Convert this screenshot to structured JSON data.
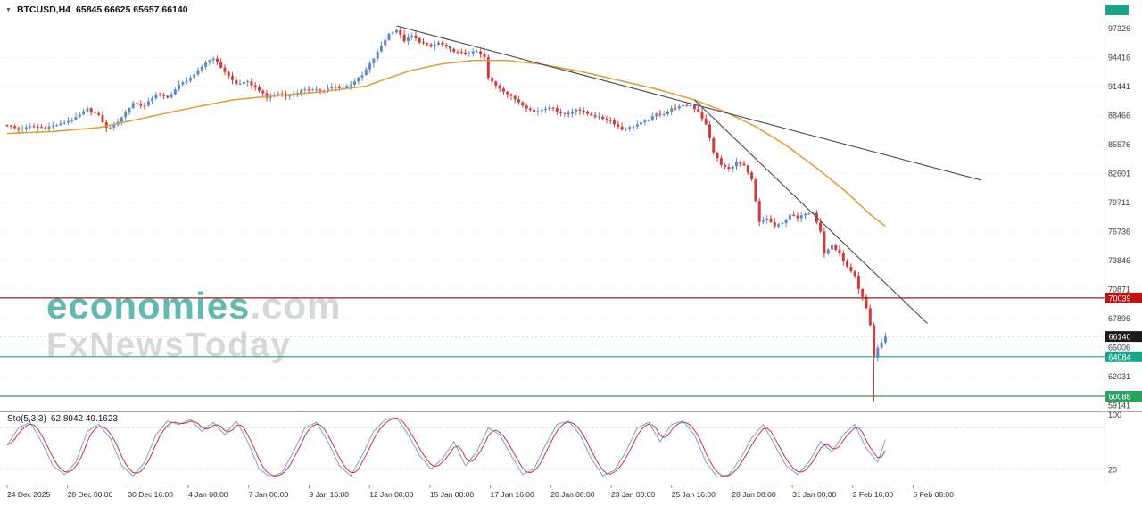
{
  "header": {
    "dropdown_icon": "▼",
    "symbol": "BTCUSD,H4",
    "ohlc": "65845 66625 65657 66140"
  },
  "watermark": {
    "brand": "economies",
    "brand_suffix": ".com",
    "subbrand": "FxNewsToday",
    "brand_color": "#35a79b",
    "gray_color": "#b4b9b9"
  },
  "chart_data": {
    "type": "candlestick",
    "symbol": "BTCUSD",
    "timeframe": "H4",
    "candle_count": 231,
    "up_color": "#5c8bc8",
    "down_color": "#d13b3b",
    "y_ticks": [
      97326,
      94416,
      91441,
      88466,
      85576,
      82601,
      79711,
      76736,
      73846,
      70871,
      67896,
      65006,
      62031,
      59141
    ],
    "x_labels": [
      "24 Dec 2025",
      "28 Dec 00:00",
      "30 Dec 16:00",
      "4 Jan 08:00",
      "7 Jan 00:00",
      "9 Jan 16:00",
      "12 Jan 08:00",
      "15 Jan 00:00",
      "17 Jan 16:00",
      "20 Jan 08:00",
      "23 Jan 00:00",
      "25 Jan 16:00",
      "28 Jan 08:00",
      "31 Jan 00:00",
      "2 Feb 16:00",
      "5 Feb 08:00"
    ],
    "price_path": [
      [
        0,
        87550
      ],
      [
        3,
        87100
      ],
      [
        6,
        87400
      ],
      [
        10,
        87300
      ],
      [
        14,
        87650
      ],
      [
        18,
        88300
      ],
      [
        21,
        89200
      ],
      [
        24,
        88500
      ],
      [
        26,
        87250
      ],
      [
        28,
        87500
      ],
      [
        31,
        88800
      ],
      [
        33,
        89800
      ],
      [
        36,
        89500
      ],
      [
        39,
        90700
      ],
      [
        42,
        90300
      ],
      [
        45,
        91600
      ],
      [
        49,
        92600
      ],
      [
        52,
        93900
      ],
      [
        54,
        94350
      ],
      [
        56,
        93400
      ],
      [
        58,
        92500
      ],
      [
        60,
        91700
      ],
      [
        63,
        91900
      ],
      [
        66,
        91100
      ],
      [
        68,
        90300
      ],
      [
        71,
        90700
      ],
      [
        74,
        90500
      ],
      [
        77,
        91000
      ],
      [
        80,
        91200
      ],
      [
        83,
        91000
      ],
      [
        85,
        91400
      ],
      [
        88,
        91300
      ],
      [
        90,
        91700
      ],
      [
        93,
        92600
      ],
      [
        96,
        94300
      ],
      [
        98,
        95600
      ],
      [
        100,
        96800
      ],
      [
        102,
        97200
      ],
      [
        104,
        96100
      ],
      [
        106,
        96600
      ],
      [
        108,
        96000
      ],
      [
        111,
        95500
      ],
      [
        113,
        95900
      ],
      [
        116,
        95200
      ],
      [
        118,
        94900
      ],
      [
        120,
        94800
      ],
      [
        123,
        95000
      ],
      [
        125,
        94400
      ],
      [
        126,
        92300
      ],
      [
        128,
        91600
      ],
      [
        131,
        90700
      ],
      [
        134,
        89900
      ],
      [
        136,
        89300
      ],
      [
        138,
        88900
      ],
      [
        140,
        89100
      ],
      [
        142,
        89400
      ],
      [
        145,
        88800
      ],
      [
        147,
        88700
      ],
      [
        149,
        89200
      ],
      [
        152,
        88700
      ],
      [
        154,
        88450
      ],
      [
        156,
        88200
      ],
      [
        158,
        88000
      ],
      [
        161,
        87100
      ],
      [
        163,
        87300
      ],
      [
        165,
        87600
      ],
      [
        168,
        88100
      ],
      [
        170,
        88650
      ],
      [
        172,
        88700
      ],
      [
        174,
        89200
      ],
      [
        177,
        89500
      ],
      [
        179,
        89560
      ],
      [
        181,
        88900
      ],
      [
        183,
        87580
      ],
      [
        185,
        84800
      ],
      [
        187,
        83500
      ],
      [
        189,
        83100
      ],
      [
        191,
        83800
      ],
      [
        193,
        83400
      ],
      [
        195,
        82000
      ],
      [
        197,
        77700
      ],
      [
        199,
        78100
      ],
      [
        201,
        77300
      ],
      [
        203,
        77600
      ],
      [
        205,
        78500
      ],
      [
        207,
        78100
      ],
      [
        209,
        78600
      ],
      [
        211,
        78730
      ],
      [
        213,
        76800
      ],
      [
        214,
        74500
      ],
      [
        216,
        75400
      ],
      [
        218,
        74500
      ],
      [
        220,
        73150
      ],
      [
        222,
        72200
      ],
      [
        223,
        70900
      ],
      [
        224,
        70100
      ],
      [
        225,
        69000
      ],
      [
        226,
        67300
      ],
      [
        227,
        64000
      ],
      [
        228,
        65000
      ],
      [
        229,
        65500
      ],
      [
        230,
        66140
      ]
    ],
    "wick_overrides": [
      {
        "i": 102,
        "high": 97320
      },
      {
        "i": 227,
        "low": 59560
      }
    ],
    "ma_orange": {
      "color": "#dfa040",
      "points": [
        [
          0,
          86700
        ],
        [
          12,
          86900
        ],
        [
          24,
          87300
        ],
        [
          35,
          88200
        ],
        [
          47,
          89200
        ],
        [
          59,
          90100
        ],
        [
          71,
          90550
        ],
        [
          82,
          90900
        ],
        [
          94,
          91500
        ],
        [
          105,
          93000
        ],
        [
          113,
          93700
        ],
        [
          122,
          94100
        ],
        [
          131,
          94100
        ],
        [
          140,
          93700
        ],
        [
          150,
          93000
        ],
        [
          160,
          92100
        ],
        [
          170,
          91200
        ],
        [
          180,
          90100
        ],
        [
          188,
          88900
        ],
        [
          196,
          87400
        ],
        [
          204,
          85500
        ],
        [
          212,
          83200
        ],
        [
          220,
          80700
        ],
        [
          226,
          78500
        ],
        [
          230,
          77300
        ]
      ]
    },
    "trendlines": [
      {
        "from": [
          102,
          97600
        ],
        "to": [
          255,
          81980
        ],
        "color": "#4a4a4a"
      },
      {
        "from": [
          180,
          90100
        ],
        "to": [
          241,
          67450
        ],
        "color": "#4a4a4a"
      }
    ],
    "hlines": [
      {
        "price": 70039,
        "label": "70039",
        "line_color": "#9b1c1c",
        "label_bg": "#c41111"
      },
      {
        "price": 64084,
        "label": "64084",
        "line_color": "#18a689",
        "label_bg": "#18a689"
      },
      {
        "price": 60088,
        "label": "60088",
        "line_color": "#27a35e",
        "label_bg": "#27a35e"
      }
    ],
    "current_price": {
      "value": 66140,
      "label": "66140",
      "label_bg": "#1c1c1c"
    },
    "pinned_label_color": "#18a689",
    "indicator": {
      "name": "Sto(5,3,3)",
      "values": "62.8942 49.1623",
      "main_color": "#7aa0d4",
      "signal_color": "#c03a3a",
      "levels": [
        80,
        20
      ],
      "range": [
        0,
        100
      ],
      "axis_labels": [
        "100",
        "20"
      ],
      "main_points": [
        [
          0,
          55
        ],
        [
          3,
          80
        ],
        [
          6,
          88
        ],
        [
          9,
          60
        ],
        [
          12,
          25
        ],
        [
          15,
          12
        ],
        [
          18,
          30
        ],
        [
          21,
          75
        ],
        [
          24,
          85
        ],
        [
          27,
          65
        ],
        [
          30,
          25
        ],
        [
          33,
          10
        ],
        [
          36,
          30
        ],
        [
          39,
          70
        ],
        [
          42,
          90
        ],
        [
          45,
          85
        ],
        [
          48,
          92
        ],
        [
          51,
          75
        ],
        [
          54,
          88
        ],
        [
          57,
          70
        ],
        [
          60,
          90
        ],
        [
          63,
          60
        ],
        [
          66,
          20
        ],
        [
          69,
          8
        ],
        [
          72,
          15
        ],
        [
          75,
          45
        ],
        [
          78,
          80
        ],
        [
          81,
          88
        ],
        [
          84,
          60
        ],
        [
          87,
          25
        ],
        [
          90,
          10
        ],
        [
          93,
          40
        ],
        [
          96,
          75
        ],
        [
          99,
          92
        ],
        [
          102,
          95
        ],
        [
          105,
          70
        ],
        [
          108,
          40
        ],
        [
          111,
          20
        ],
        [
          114,
          35
        ],
        [
          117,
          60
        ],
        [
          120,
          25
        ],
        [
          123,
          45
        ],
        [
          126,
          80
        ],
        [
          129,
          70
        ],
        [
          132,
          40
        ],
        [
          135,
          12
        ],
        [
          138,
          20
        ],
        [
          141,
          55
        ],
        [
          144,
          85
        ],
        [
          147,
          90
        ],
        [
          150,
          70
        ],
        [
          153,
          35
        ],
        [
          156,
          10
        ],
        [
          159,
          18
        ],
        [
          162,
          45
        ],
        [
          165,
          80
        ],
        [
          168,
          88
        ],
        [
          171,
          60
        ],
        [
          174,
          85
        ],
        [
          177,
          90
        ],
        [
          180,
          70
        ],
        [
          183,
          30
        ],
        [
          186,
          8
        ],
        [
          189,
          12
        ],
        [
          192,
          35
        ],
        [
          195,
          65
        ],
        [
          198,
          85
        ],
        [
          201,
          55
        ],
        [
          204,
          25
        ],
        [
          207,
          12
        ],
        [
          210,
          30
        ],
        [
          213,
          60
        ],
        [
          216,
          45
        ],
        [
          219,
          70
        ],
        [
          222,
          85
        ],
        [
          225,
          50
        ],
        [
          228,
          30
        ],
        [
          230,
          63
        ]
      ]
    }
  }
}
